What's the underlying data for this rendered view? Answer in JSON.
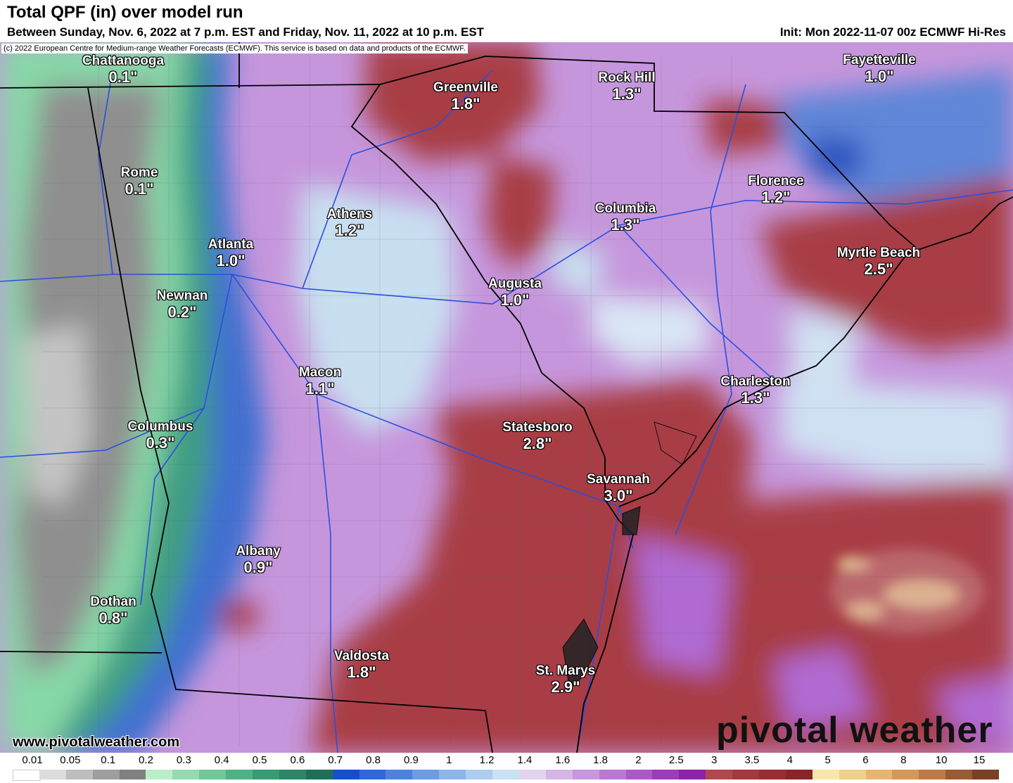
{
  "header": {
    "title": "Total QPF (in) over model run",
    "subtitle": "Between Sunday, Nov. 6, 2022 at 7 p.m. EST and Friday, Nov. 11, 2022 at 10 p.m. EST",
    "init": "Init: Mon 2022-11-07 00z ECMWF Hi-Res"
  },
  "copyright": "(c) 2022 European Centre for Medium-range Weather Forecasts (ECMWF). This service is based on data and products of the ECMWF.",
  "cities": [
    {
      "name": "Chattanooga",
      "value": "0.1\""
    },
    {
      "name": "Greenville",
      "value": "1.8\""
    },
    {
      "name": "Rock Hill",
      "value": "1.3\""
    },
    {
      "name": "Fayetteville",
      "value": "1.0\""
    },
    {
      "name": "Rome",
      "value": "0.1\""
    },
    {
      "name": "Athens",
      "value": "1.2\""
    },
    {
      "name": "Columbia",
      "value": "1.3\""
    },
    {
      "name": "Florence",
      "value": "1.2\""
    },
    {
      "name": "Atlanta",
      "value": "1.0\""
    },
    {
      "name": "Myrtle Beach",
      "value": "2.5\""
    },
    {
      "name": "Newnan",
      "value": "0.2\""
    },
    {
      "name": "Augusta",
      "value": "1.0\""
    },
    {
      "name": "Macon",
      "value": "1.1\""
    },
    {
      "name": "Charleston",
      "value": "1.3\""
    },
    {
      "name": "Columbus",
      "value": "0.3\""
    },
    {
      "name": "Statesboro",
      "value": "2.8\""
    },
    {
      "name": "Savannah",
      "value": "3.0\""
    },
    {
      "name": "Albany",
      "value": "0.9\""
    },
    {
      "name": "Dothan",
      "value": "0.8\""
    },
    {
      "name": "Valdosta",
      "value": "1.8\""
    },
    {
      "name": "St. Marys",
      "value": "2.9\""
    }
  ],
  "watermark": {
    "url": "www.pivotalweather.com",
    "logo": "pivotal weather"
  },
  "legend": {
    "ticks": [
      "0.01",
      "0.05",
      "0.1",
      "0.2",
      "0.3",
      "0.4",
      "0.5",
      "0.6",
      "0.7",
      "0.8",
      "0.9",
      "1",
      "1.2",
      "1.4",
      "1.6",
      "1.8",
      "2",
      "2.5",
      "3",
      "3.5",
      "4",
      "5",
      "6",
      "8",
      "10",
      "15"
    ],
    "colors": [
      "#ffffff",
      "#dcdcdc",
      "#bdbdbd",
      "#9e9e9e",
      "#808080",
      "#b8efc8",
      "#94dcae",
      "#6fc896",
      "#4eb384",
      "#369c73",
      "#2a8666",
      "#1d6f59",
      "#1450c8",
      "#2f68d8",
      "#4c82de",
      "#6c9ce4",
      "#8cb6ea",
      "#adcdef",
      "#c8e1f3",
      "#e2d4ee",
      "#d6b6e6",
      "#c896dc",
      "#ba78d4",
      "#ab58c8",
      "#9c3cba",
      "#8c23aa",
      "#b2484f",
      "#a6383d",
      "#9a2d33",
      "#8a2428",
      "#f6e6a8",
      "#efd08a",
      "#e6b572",
      "#d69858",
      "#c07a46",
      "#9a5a34",
      "#7a3f24"
    ]
  },
  "map_colors": {
    "low_gray": "#8f8f8f",
    "low_green": "#7fcfa0",
    "teal": "#2f8f7a",
    "blue": "#3f6fd0",
    "light_blue": "#c8dff0",
    "lavender": "#d8b8e6",
    "purple": "#b06ad2",
    "magenta": "#9c3cba",
    "red": "#a83c44",
    "yellow": "#f2e39a",
    "border_line": "#000000",
    "road_line": "#2a4fe0"
  }
}
